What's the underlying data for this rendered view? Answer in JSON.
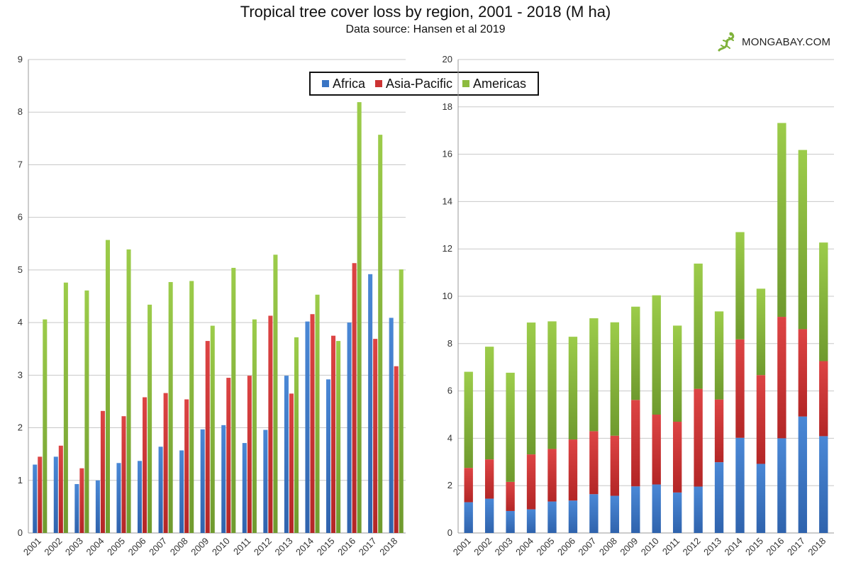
{
  "title": "Tropical tree cover loss by region, 2001 - 2018 (M ha)",
  "subtitle": "Data source: Hansen et al 2019",
  "logo_text": "MONGABAY.COM",
  "colors": {
    "Africa": "#3a75c4",
    "Asia-Pacific": "#cc3333",
    "Americas": "#8dbb3f"
  },
  "legend": [
    "Africa",
    "Asia-Pacific",
    "Americas"
  ],
  "chart_data": [
    {
      "type": "bar",
      "mode": "grouped",
      "categories": [
        "2001",
        "2002",
        "2003",
        "2004",
        "2005",
        "2006",
        "2007",
        "2008",
        "2009",
        "2010",
        "2011",
        "2012",
        "2013",
        "2014",
        "2015",
        "2016",
        "2017",
        "2018"
      ],
      "series": [
        {
          "name": "Africa",
          "values": [
            1.3,
            1.45,
            0.93,
            1.0,
            1.33,
            1.37,
            1.64,
            1.57,
            1.97,
            2.05,
            1.71,
            1.96,
            2.99,
            4.02,
            2.92,
            4.0,
            4.92,
            4.09
          ]
        },
        {
          "name": "Asia-Pacific",
          "values": [
            1.45,
            1.66,
            1.23,
            2.32,
            2.22,
            2.58,
            2.66,
            2.54,
            3.65,
            2.95,
            2.99,
            4.13,
            2.65,
            4.16,
            3.75,
            5.13,
            3.69,
            3.17
          ]
        },
        {
          "name": "Americas",
          "values": [
            4.06,
            4.76,
            4.61,
            5.57,
            5.39,
            4.34,
            4.77,
            4.79,
            3.94,
            5.04,
            4.06,
            5.29,
            3.72,
            4.53,
            3.65,
            8.19,
            7.57,
            5.01
          ]
        }
      ],
      "yticks": [
        "0",
        "1",
        "2",
        "3",
        "4",
        "5",
        "6",
        "7",
        "8",
        "9"
      ],
      "ylim": [
        0,
        9
      ],
      "grid": true
    },
    {
      "type": "bar",
      "mode": "stacked",
      "categories": [
        "2001",
        "2002",
        "2003",
        "2004",
        "2005",
        "2006",
        "2007",
        "2008",
        "2009",
        "2010",
        "2011",
        "2012",
        "2013",
        "2014",
        "2015",
        "2016",
        "2017",
        "2018"
      ],
      "series": [
        {
          "name": "Africa",
          "values": [
            1.3,
            1.45,
            0.93,
            1.0,
            1.33,
            1.37,
            1.64,
            1.57,
            1.97,
            2.05,
            1.71,
            1.96,
            2.99,
            4.02,
            2.92,
            4.0,
            4.92,
            4.09
          ]
        },
        {
          "name": "Asia-Pacific",
          "values": [
            1.45,
            1.66,
            1.23,
            2.32,
            2.22,
            2.58,
            2.66,
            2.54,
            3.65,
            2.95,
            2.99,
            4.13,
            2.65,
            4.16,
            3.75,
            5.13,
            3.69,
            3.17
          ]
        },
        {
          "name": "Americas",
          "values": [
            4.06,
            4.76,
            4.61,
            5.57,
            5.39,
            4.34,
            4.77,
            4.79,
            3.94,
            5.04,
            4.06,
            5.29,
            3.72,
            4.53,
            3.65,
            8.19,
            7.57,
            5.01
          ]
        }
      ],
      "yticks": [
        "0",
        "2",
        "4",
        "6",
        "8",
        "10",
        "12",
        "14",
        "16",
        "18",
        "20"
      ],
      "ylim": [
        0,
        20
      ],
      "grid": true
    }
  ]
}
